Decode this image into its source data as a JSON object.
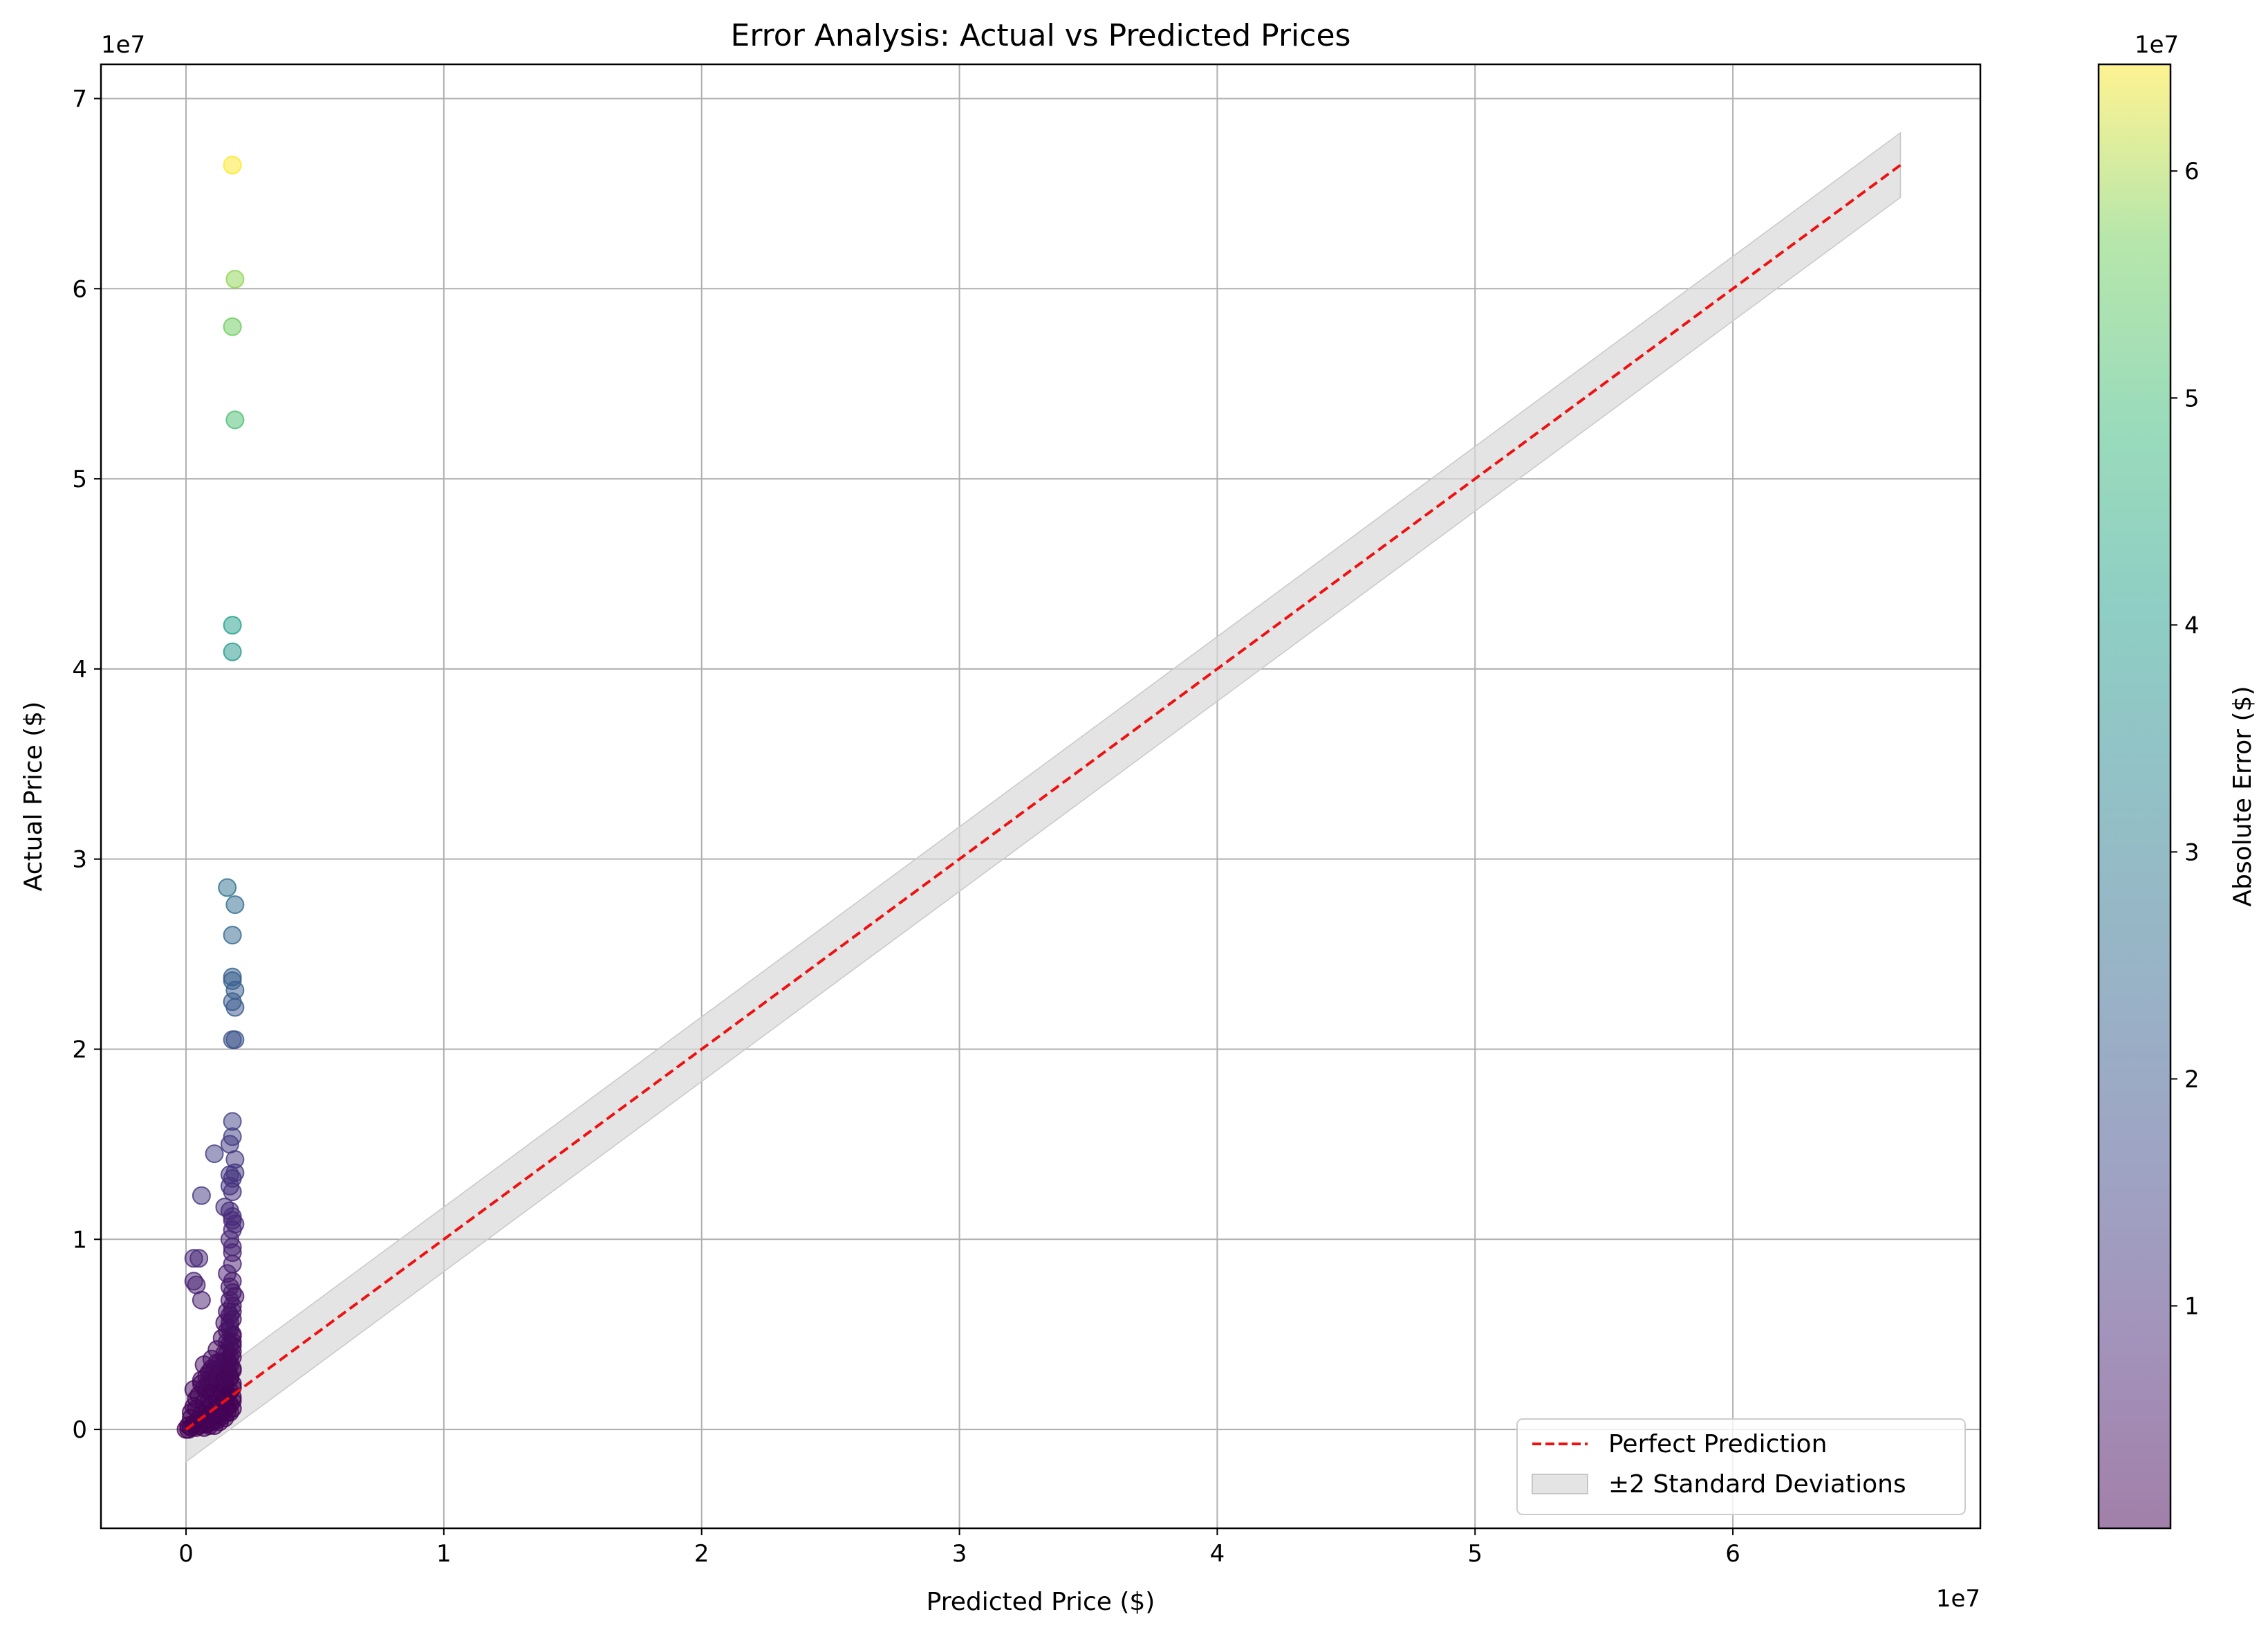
{
  "chart_data": {
    "type": "scatter",
    "title": "Error Analysis: Actual vs Predicted Prices",
    "xlabel": "Predicted Price ($)",
    "ylabel": "Actual Price ($)",
    "x_offset_text": "1e7",
    "y_offset_text": "1e7",
    "xlim": [
      -0.33,
      6.96
    ],
    "ylim": [
      -0.52,
      7.18
    ],
    "x_ticks": [
      0,
      1,
      2,
      3,
      4,
      5,
      6
    ],
    "y_ticks": [
      0,
      1,
      2,
      3,
      4,
      5,
      6,
      7
    ],
    "grid": true,
    "legend": {
      "position": "lower-right",
      "entries": [
        {
          "label": "Perfect Prediction",
          "style": "dashed-line",
          "color": "#ee1111"
        },
        {
          "label": "±2 Standard Deviations",
          "style": "band",
          "color": "#d9d9d9"
        }
      ]
    },
    "reference_line": {
      "x": [
        0,
        6.65
      ],
      "y": [
        0,
        6.65
      ]
    },
    "band": {
      "x": [
        0,
        6.65
      ],
      "half_width": 0.17
    },
    "colorbar": {
      "label": "Absolute Error ($)",
      "offset_text": "1e7",
      "range": [
        0.02,
        6.47
      ],
      "ticks": [
        1,
        2,
        3,
        4,
        5,
        6
      ],
      "colormap": "viridis"
    },
    "points": [
      [
        0.18,
        6.65
      ],
      [
        0.19,
        6.05
      ],
      [
        0.18,
        5.8
      ],
      [
        0.19,
        5.31
      ],
      [
        0.18,
        4.23
      ],
      [
        0.18,
        4.09
      ],
      [
        0.16,
        2.85
      ],
      [
        0.19,
        2.76
      ],
      [
        0.18,
        2.6
      ],
      [
        0.18,
        2.38
      ],
      [
        0.18,
        2.36
      ],
      [
        0.19,
        2.31
      ],
      [
        0.18,
        2.25
      ],
      [
        0.19,
        2.22
      ],
      [
        0.18,
        2.05
      ],
      [
        0.19,
        2.05
      ],
      [
        0.18,
        1.62
      ],
      [
        0.18,
        1.54
      ],
      [
        0.17,
        1.5
      ],
      [
        0.11,
        1.45
      ],
      [
        0.19,
        1.42
      ],
      [
        0.19,
        1.35
      ],
      [
        0.17,
        1.34
      ],
      [
        0.18,
        1.32
      ],
      [
        0.17,
        1.28
      ],
      [
        0.18,
        1.25
      ],
      [
        0.06,
        1.23
      ],
      [
        0.15,
        1.17
      ],
      [
        0.17,
        1.15
      ],
      [
        0.18,
        1.12
      ],
      [
        0.18,
        1.1
      ],
      [
        0.19,
        1.08
      ],
      [
        0.18,
        1.05
      ],
      [
        0.17,
        1.0
      ],
      [
        0.18,
        0.96
      ],
      [
        0.18,
        0.93
      ],
      [
        0.03,
        0.9
      ],
      [
        0.05,
        0.9
      ],
      [
        0.18,
        0.87
      ],
      [
        0.16,
        0.82
      ],
      [
        0.18,
        0.78
      ],
      [
        0.03,
        0.78
      ],
      [
        0.04,
        0.76
      ],
      [
        0.17,
        0.75
      ],
      [
        0.18,
        0.72
      ],
      [
        0.19,
        0.7
      ],
      [
        0.06,
        0.68
      ],
      [
        0.17,
        0.68
      ],
      [
        0.18,
        0.65
      ],
      [
        0.16,
        0.62
      ],
      [
        0.18,
        0.58
      ],
      [
        0.15,
        0.56
      ],
      [
        0.17,
        0.53
      ],
      [
        0.18,
        0.5
      ],
      [
        0.14,
        0.48
      ],
      [
        0.16,
        0.46
      ],
      [
        0.18,
        0.44
      ],
      [
        0.12,
        0.42
      ],
      [
        0.15,
        0.4
      ],
      [
        0.17,
        0.38
      ],
      [
        0.1,
        0.37
      ],
      [
        0.13,
        0.35
      ],
      [
        0.07,
        0.34
      ],
      [
        0.16,
        0.33
      ],
      [
        0.18,
        0.31
      ],
      [
        0.09,
        0.3
      ],
      [
        0.12,
        0.29
      ],
      [
        0.14,
        0.28
      ],
      [
        0.17,
        0.27
      ],
      [
        0.06,
        0.26
      ],
      [
        0.1,
        0.25
      ],
      [
        0.13,
        0.24
      ],
      [
        0.15,
        0.23
      ],
      [
        0.18,
        0.22
      ],
      [
        0.08,
        0.21
      ],
      [
        0.11,
        0.2
      ],
      [
        0.03,
        0.21
      ],
      [
        0.14,
        0.19
      ],
      [
        0.16,
        0.18
      ],
      [
        0.05,
        0.18
      ],
      [
        0.09,
        0.17
      ],
      [
        0.12,
        0.16
      ],
      [
        0.15,
        0.15
      ],
      [
        0.18,
        0.15
      ],
      [
        0.07,
        0.14
      ],
      [
        0.1,
        0.13
      ],
      [
        0.13,
        0.12
      ],
      [
        0.16,
        0.12
      ],
      [
        0.04,
        0.11
      ],
      [
        0.08,
        0.1
      ],
      [
        0.11,
        0.1
      ],
      [
        0.14,
        0.09
      ],
      [
        0.17,
        0.09
      ],
      [
        0.06,
        0.08
      ],
      [
        0.09,
        0.07
      ],
      [
        0.12,
        0.07
      ],
      [
        0.15,
        0.06
      ],
      [
        0.02,
        0.06
      ],
      [
        0.05,
        0.05
      ],
      [
        0.08,
        0.05
      ],
      [
        0.1,
        0.04
      ],
      [
        0.13,
        0.04
      ],
      [
        0.03,
        0.03
      ],
      [
        0.06,
        0.03
      ],
      [
        0.09,
        0.02
      ],
      [
        0.11,
        0.02
      ],
      [
        0.01,
        0.02
      ],
      [
        0.04,
        0.01
      ],
      [
        0.07,
        0.01
      ],
      [
        0.0,
        0.0
      ],
      [
        0.01,
        0.0
      ],
      [
        0.02,
        0.01
      ],
      [
        0.05,
        0.02
      ],
      [
        0.08,
        0.03
      ],
      [
        0.12,
        0.05
      ],
      [
        0.14,
        0.07
      ],
      [
        0.16,
        0.09
      ],
      [
        0.18,
        0.11
      ],
      [
        0.17,
        0.13
      ],
      [
        0.18,
        0.17
      ],
      [
        0.17,
        0.2
      ],
      [
        0.18,
        0.24
      ],
      [
        0.17,
        0.28
      ],
      [
        0.18,
        0.32
      ],
      [
        0.16,
        0.36
      ],
      [
        0.18,
        0.41
      ],
      [
        0.17,
        0.45
      ],
      [
        0.18,
        0.49
      ],
      [
        0.16,
        0.52
      ],
      [
        0.17,
        0.6
      ],
      [
        0.11,
        0.31
      ],
      [
        0.09,
        0.26
      ],
      [
        0.07,
        0.22
      ],
      [
        0.12,
        0.27
      ],
      [
        0.14,
        0.33
      ],
      [
        0.13,
        0.3
      ],
      [
        0.15,
        0.36
      ],
      [
        0.16,
        0.4
      ],
      [
        0.12,
        0.35
      ],
      [
        0.1,
        0.32
      ],
      [
        0.08,
        0.28
      ],
      [
        0.06,
        0.24
      ],
      [
        0.04,
        0.16
      ],
      [
        0.03,
        0.12
      ],
      [
        0.02,
        0.09
      ],
      [
        0.1,
        0.19
      ],
      [
        0.15,
        0.26
      ],
      [
        0.16,
        0.3
      ],
      [
        0.17,
        0.34
      ],
      [
        0.18,
        0.38
      ],
      [
        0.18,
        0.46
      ],
      [
        0.17,
        0.56
      ],
      [
        0.18,
        0.62
      ]
    ]
  }
}
